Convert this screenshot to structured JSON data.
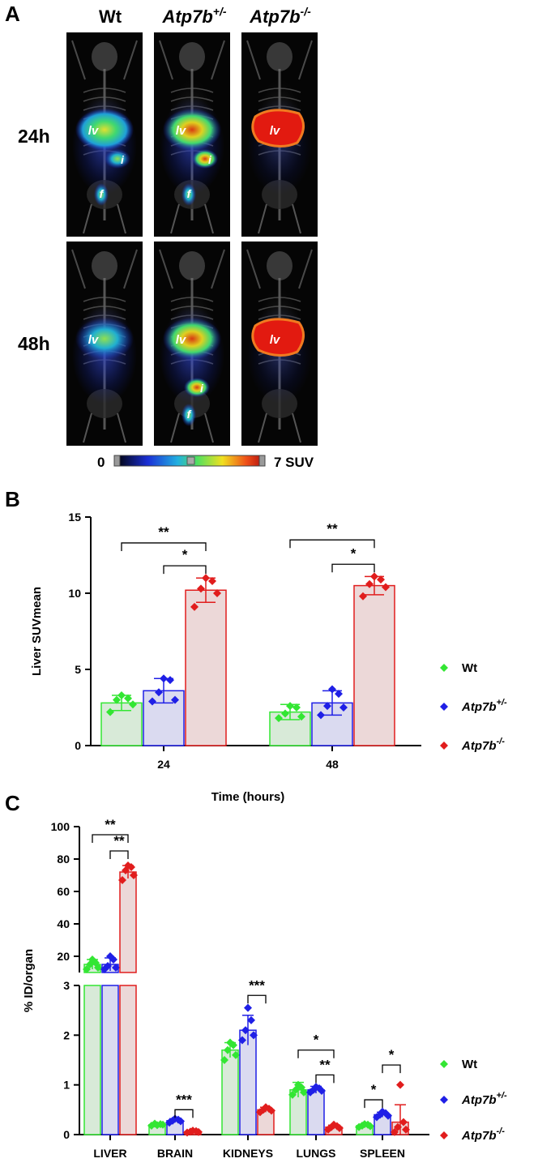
{
  "panel_a": {
    "letter": "A",
    "columns": [
      {
        "label": "Wt",
        "sup": ""
      },
      {
        "label": "Atp7b",
        "sup": "+/-"
      },
      {
        "label": "Atp7b",
        "sup": "-/-"
      }
    ],
    "rows": [
      "24h",
      "48h"
    ],
    "organ_labels": {
      "liver": "lv",
      "intestine": "i",
      "feces": "f"
    },
    "colorbar": {
      "min_label": "0",
      "max_label": "7 SUV"
    },
    "colors": {
      "background": "#050505",
      "cool": "#1a2fd6",
      "mid": "#38e070",
      "hot": "#ee2a12"
    }
  },
  "chart_data": [
    {
      "panel": "B",
      "type": "bar",
      "xlabel": "Time (hours)",
      "ylabel": "Liver SUVmean",
      "categories": [
        "24",
        "48"
      ],
      "ylim": [
        0,
        15
      ],
      "yticks": [
        0,
        5,
        10,
        15
      ],
      "legend_position": "right",
      "series": [
        {
          "name": "Wt",
          "sup": "",
          "color": "#33e633",
          "fill": "#d8ead8",
          "values": [
            2.8,
            2.2
          ],
          "sd": [
            0.5,
            0.5
          ],
          "points": [
            [
              2.2,
              2.7,
              3.0,
              3.1,
              3.3
            ],
            [
              1.8,
              1.9,
              2.1,
              2.5,
              2.6
            ]
          ]
        },
        {
          "name": "Atp7b",
          "sup": "+/-",
          "color": "#1f1fe6",
          "fill": "#dadaf0",
          "values": [
            3.6,
            2.8
          ],
          "sd": [
            0.8,
            0.8
          ],
          "points": [
            [
              2.9,
              3.0,
              3.5,
              4.3,
              4.4
            ],
            [
              2.0,
              2.5,
              2.6,
              3.4,
              3.7
            ]
          ]
        },
        {
          "name": "Atp7b",
          "sup": "-/-",
          "color": "#e11d1d",
          "fill": "#ecd8d8",
          "values": [
            10.2,
            10.5
          ],
          "sd": [
            0.8,
            0.6
          ],
          "points": [
            [
              9.1,
              10.0,
              10.3,
              10.8,
              11.0
            ],
            [
              9.8,
              10.4,
              10.6,
              10.9,
              11.1
            ]
          ]
        }
      ],
      "significance": [
        {
          "category": 0,
          "from": 0,
          "to": 2,
          "label": "**",
          "level": 13.3
        },
        {
          "category": 0,
          "from": 1,
          "to": 2,
          "label": "*",
          "level": 11.8
        },
        {
          "category": 1,
          "from": 0,
          "to": 2,
          "label": "**",
          "level": 13.5
        },
        {
          "category": 1,
          "from": 1,
          "to": 2,
          "label": "*",
          "level": 11.9
        }
      ]
    },
    {
      "panel": "C",
      "type": "bar",
      "xlabel": "",
      "ylabel": "% ID/organ",
      "categories": [
        "LIVER",
        "BRAIN",
        "KIDNEYS",
        "LUNGS",
        "SPLEEN"
      ],
      "ylim_lower": [
        0,
        3
      ],
      "ylim_upper": [
        10,
        100
      ],
      "yticks_lower": [
        0,
        1,
        2,
        3
      ],
      "yticks_upper": [
        20,
        40,
        60,
        80,
        100
      ],
      "broken_axis": true,
      "legend_position": "right",
      "series": [
        {
          "name": "Wt",
          "sup": "",
          "color": "#33e633",
          "fill": "#d8ead8",
          "values": [
            15,
            0.2,
            1.7,
            0.9,
            0.18
          ],
          "sd": [
            3,
            0.03,
            0.15,
            0.15,
            0.03
          ],
          "points": [
            [
              12,
              13,
              15,
              16,
              18
            ],
            [
              0.18,
              0.2,
              0.22,
              0.21,
              0.19
            ],
            [
              1.5,
              1.6,
              1.7,
              1.8,
              1.85
            ],
            [
              0.8,
              0.85,
              0.9,
              0.95,
              1.0
            ],
            [
              0.15,
              0.17,
              0.18,
              0.2,
              0.21
            ]
          ]
        },
        {
          "name": "Atp7b",
          "sup": "+/-",
          "color": "#1f1fe6",
          "fill": "#dadaf0",
          "values": [
            15,
            0.28,
            2.1,
            0.9,
            0.4
          ],
          "sd": [
            4,
            0.04,
            0.3,
            0.07,
            0.05
          ],
          "points": [
            [
              12,
              13,
              14,
              18,
              20
            ],
            [
              0.24,
              0.27,
              0.28,
              0.3,
              0.32
            ],
            [
              1.9,
              2.0,
              2.1,
              2.3,
              2.55
            ],
            [
              0.85,
              0.88,
              0.9,
              0.93,
              0.96
            ],
            [
              0.35,
              0.38,
              0.4,
              0.43,
              0.46
            ]
          ]
        },
        {
          "name": "Atp7b",
          "sup": "-/-",
          "color": "#e11d1d",
          "fill": "#ecd8d8",
          "values": [
            72,
            0.06,
            0.5,
            0.15,
            0.25
          ],
          "sd": [
            4,
            0.02,
            0.05,
            0.04,
            0.35
          ],
          "points": [
            [
              67,
              70,
              73,
              75,
              76
            ],
            [
              0.04,
              0.05,
              0.06,
              0.07,
              0.08
            ],
            [
              0.45,
              0.48,
              0.5,
              0.52,
              0.55
            ],
            [
              0.1,
              0.13,
              0.15,
              0.17,
              0.2
            ],
            [
              0.05,
              0.1,
              0.15,
              0.25,
              1.0
            ]
          ]
        }
      ],
      "significance": [
        {
          "category": 0,
          "from": 0,
          "to": 2,
          "label": "**",
          "level": 95
        },
        {
          "category": 0,
          "from": 1,
          "to": 2,
          "label": "**",
          "level": 85
        },
        {
          "category": 1,
          "from": 1,
          "to": 2,
          "label": "***",
          "level": 0.5
        },
        {
          "category": 2,
          "from": 1,
          "to": 2,
          "label": "***",
          "level": 2.8
        },
        {
          "category": 3,
          "from": 0,
          "to": 2,
          "label": "*",
          "level": 1.7
        },
        {
          "category": 3,
          "from": 1,
          "to": 2,
          "label": "**",
          "level": 1.2
        },
        {
          "category": 4,
          "from": 0,
          "to": 1,
          "label": "*",
          "level": 0.7
        },
        {
          "category": 4,
          "from": 1,
          "to": 2,
          "label": "*",
          "level": 1.4
        }
      ]
    }
  ]
}
